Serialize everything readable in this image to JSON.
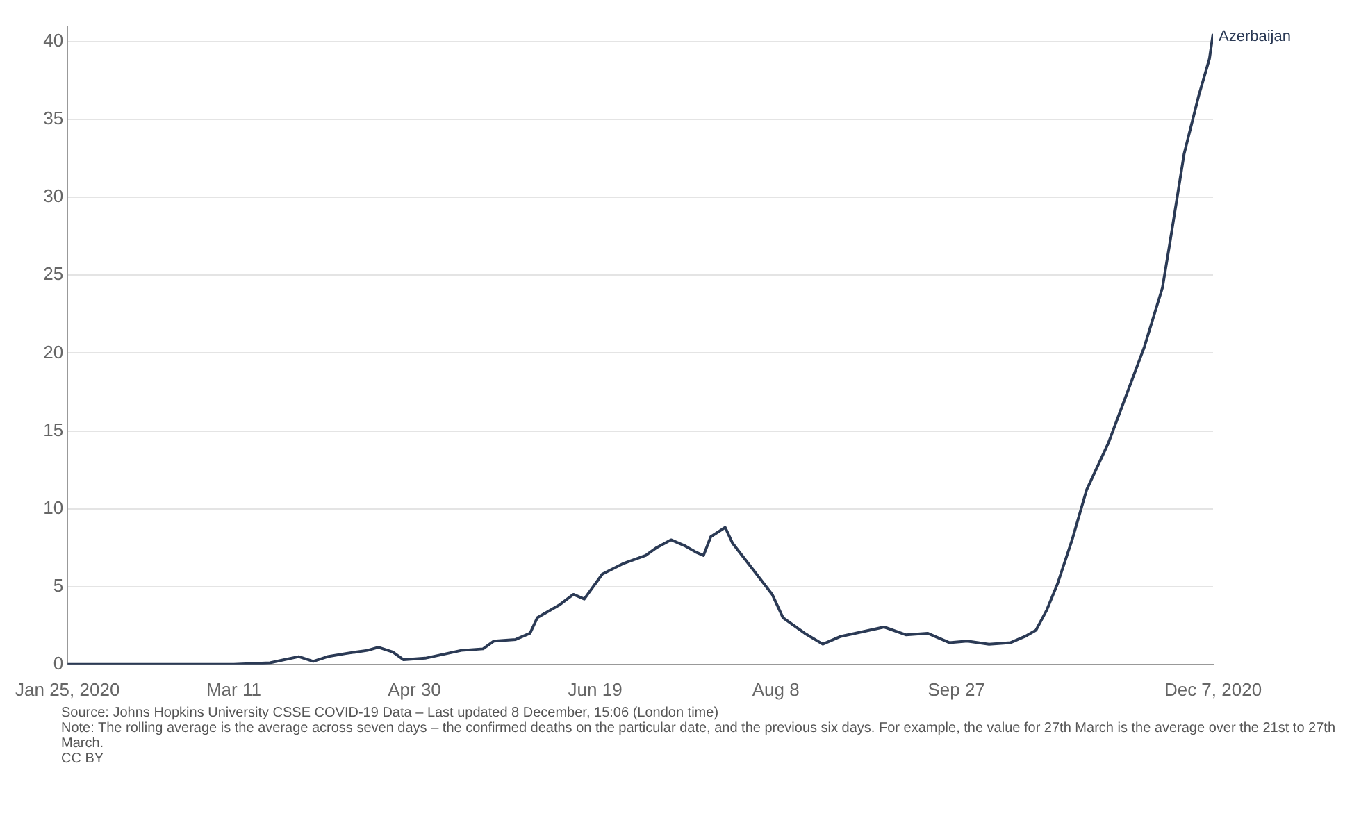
{
  "chart_data": {
    "type": "line",
    "legend": false,
    "grid": "y",
    "marker": "none",
    "line_style": "solid",
    "xlim": [
      "2020-01-25",
      "2020-12-07"
    ],
    "xticks": [
      {
        "value": "2020-01-25",
        "label": "Jan 25, 2020"
      },
      {
        "value": "2020-03-11",
        "label": "Mar 11"
      },
      {
        "value": "2020-04-30",
        "label": "Apr 30"
      },
      {
        "value": "2020-06-19",
        "label": "Jun 19"
      },
      {
        "value": "2020-08-08",
        "label": "Aug 8"
      },
      {
        "value": "2020-09-27",
        "label": "Sep 27"
      },
      {
        "value": "2020-12-07",
        "label": "Dec 7, 2020"
      }
    ],
    "ylim": [
      0,
      41
    ],
    "yticks": [
      0,
      5,
      10,
      15,
      20,
      25,
      30,
      35,
      40
    ],
    "x": [
      "2020-01-25",
      "2020-02-28",
      "2020-03-11",
      "2020-03-21",
      "2020-03-25",
      "2020-03-29",
      "2020-04-02",
      "2020-04-06",
      "2020-04-11",
      "2020-04-17",
      "2020-04-20",
      "2020-04-24",
      "2020-04-27",
      "2020-05-03",
      "2020-05-07",
      "2020-05-13",
      "2020-05-19",
      "2020-05-22",
      "2020-05-28",
      "2020-06-01",
      "2020-06-03",
      "2020-06-09",
      "2020-06-13",
      "2020-06-16",
      "2020-06-21",
      "2020-06-27",
      "2020-07-03",
      "2020-07-06",
      "2020-07-10",
      "2020-07-14",
      "2020-07-17",
      "2020-07-19",
      "2020-07-21",
      "2020-07-25",
      "2020-07-27",
      "2020-08-02",
      "2020-08-07",
      "2020-08-10",
      "2020-08-16",
      "2020-08-21",
      "2020-08-26",
      "2020-09-01",
      "2020-09-07",
      "2020-09-13",
      "2020-09-19",
      "2020-09-25",
      "2020-09-30",
      "2020-10-06",
      "2020-10-12",
      "2020-10-16",
      "2020-10-19",
      "2020-10-22",
      "2020-10-25",
      "2020-10-29",
      "2020-11-02",
      "2020-11-08",
      "2020-11-18",
      "2020-11-23",
      "2020-11-25",
      "2020-11-29",
      "2020-12-03",
      "2020-12-06",
      "2020-12-07"
    ],
    "series": [
      {
        "name": "Azerbaijan",
        "color": "#2b3a55",
        "values": [
          0,
          0,
          0,
          0.1,
          0.3,
          0.5,
          0.2,
          0.5,
          0.7,
          0.9,
          1.1,
          0.8,
          0.3,
          0.4,
          0.6,
          0.9,
          1.0,
          1.5,
          1.6,
          2.0,
          3.0,
          3.8,
          4.5,
          4.2,
          5.8,
          6.5,
          7.0,
          7.5,
          8.0,
          7.6,
          7.2,
          7.0,
          8.2,
          8.8,
          7.8,
          6.0,
          4.5,
          3.0,
          2.0,
          1.3,
          1.8,
          2.1,
          2.4,
          1.9,
          2.0,
          1.4,
          1.5,
          1.3,
          1.4,
          1.8,
          2.2,
          3.5,
          5.2,
          8.0,
          11.2,
          14.2,
          20.4,
          24.2,
          27.0,
          32.8,
          36.5,
          38.9,
          40.5
        ]
      }
    ],
    "annotations": [
      "Source: Johns Hopkins University CSSE COVID-19 Data – Last updated 8 December, 15:06 (London time)",
      "Note: The rolling average is the average across seven days – the confirmed deaths on the particular date, and the previous six days. For example, the value for 27th March is the average over the 21st to 27th March.",
      "CC BY"
    ]
  }
}
